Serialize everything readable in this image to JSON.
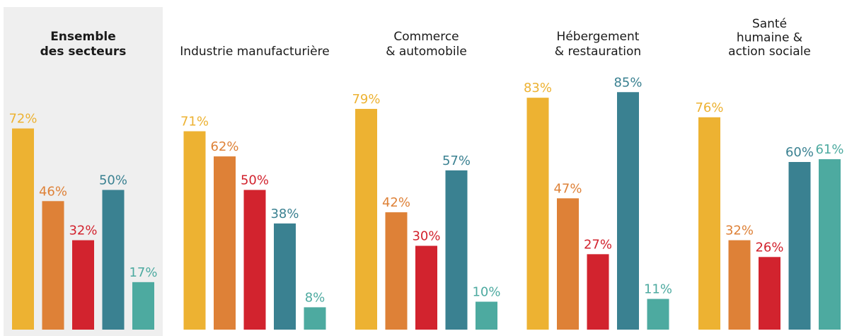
{
  "chart_data": [
    {
      "type": "bar",
      "title": [
        "Ensemble",
        "des secteurs"
      ],
      "highlight": true,
      "values": [
        72,
        46,
        32,
        50,
        17
      ],
      "value_labels": [
        "72%",
        "46%",
        "32%",
        "50%",
        "17%"
      ],
      "colors": [
        "#edb232",
        "#de8137",
        "#d2232e",
        "#3a8191",
        "#4daaa0"
      ],
      "ylim": [
        0,
        100
      ]
    },
    {
      "type": "bar",
      "title": [
        "Industrie manufacturière"
      ],
      "highlight": false,
      "values": [
        71,
        62,
        50,
        38,
        8
      ],
      "value_labels": [
        "71%",
        "62%",
        "50%",
        "38%",
        "8%"
      ],
      "colors": [
        "#edb232",
        "#de8137",
        "#d2232e",
        "#3a8191",
        "#4daaa0"
      ],
      "ylim": [
        0,
        100
      ]
    },
    {
      "type": "bar",
      "title": [
        "Commerce",
        "& automobile"
      ],
      "highlight": false,
      "values": [
        79,
        42,
        30,
        57,
        10
      ],
      "value_labels": [
        "79%",
        "42%",
        "30%",
        "57%",
        "10%"
      ],
      "colors": [
        "#edb232",
        "#de8137",
        "#d2232e",
        "#3a8191",
        "#4daaa0"
      ],
      "ylim": [
        0,
        100
      ]
    },
    {
      "type": "bar",
      "title": [
        "Hébergement",
        "& restauration"
      ],
      "highlight": false,
      "values": [
        83,
        47,
        27,
        85,
        11
      ],
      "value_labels": [
        "83%",
        "47%",
        "27%",
        "85%",
        "11%"
      ],
      "colors": [
        "#edb232",
        "#de8137",
        "#d2232e",
        "#3a8191",
        "#4daaa0"
      ],
      "ylim": [
        0,
        100
      ]
    },
    {
      "type": "bar",
      "title": [
        "Santé",
        "humaine &",
        "action sociale"
      ],
      "highlight": false,
      "values": [
        76,
        32,
        26,
        60,
        61
      ],
      "value_labels": [
        "76%",
        "32%",
        "26%",
        "60%",
        "61%"
      ],
      "colors": [
        "#edb232",
        "#de8137",
        "#d2232e",
        "#3a8191",
        "#4daaa0"
      ],
      "ylim": [
        0,
        100
      ]
    }
  ]
}
